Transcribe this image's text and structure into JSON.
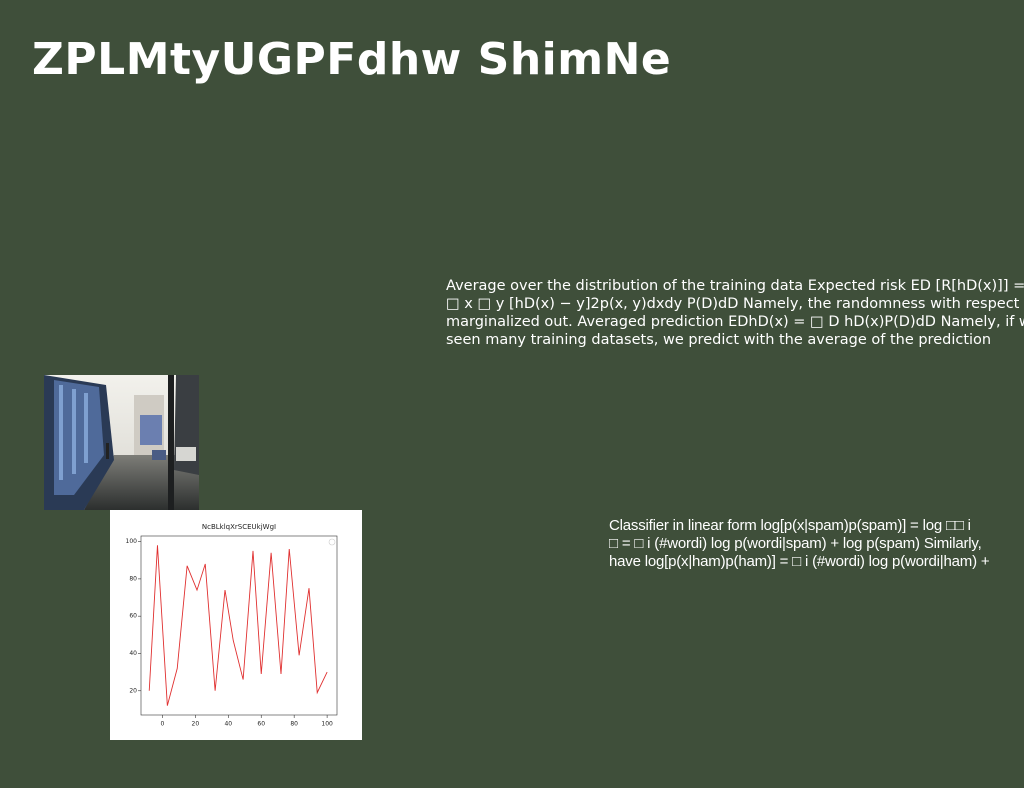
{
  "title": "ZPLMtyUGPFdhw ShimNe",
  "text_blocks": [
    {
      "lines": [
        "Average over the distribution of the training data Expected risk ED [R[hD(x)]] = □",
        "□ x □ y [hD(x) − y]2p(x, y)dxdy P(D)dD Namely, the randomness with respect to D",
        "marginalized out. Averaged prediction EDhD(x) = □ D hD(x)P(D)dD Namely, if we",
        "seen many training datasets, we predict with the average of the prediction"
      ]
    },
    {
      "lines": [
        "Classifier in linear form log[p(x|spam)p(spam)] = log □□ i",
        "□ = □ i (#wordi) log p(wordi|spam) + log p(spam) Similarly,",
        "have log[p(x|ham)p(ham)] = □ i (#wordi) log p(wordi|ham) +"
      ]
    }
  ],
  "chart_data": {
    "type": "line",
    "title": "NcBLklqXrSCEUkjWgI",
    "x": [
      -8,
      -3,
      3,
      9,
      15,
      21,
      26,
      32,
      38,
      43,
      49,
      55,
      60,
      66,
      72,
      77,
      83,
      89,
      94,
      100
    ],
    "series": [
      {
        "color": "#e03030",
        "values": [
          20,
          98,
          12,
          32,
          87,
          74,
          88,
          20,
          74,
          47,
          26,
          95,
          29,
          94,
          29,
          96,
          39,
          75,
          19,
          30
        ]
      }
    ],
    "xlim": [
      -13,
      106
    ],
    "xticks": [
      0,
      20,
      40,
      60,
      80,
      100
    ],
    "ylim": [
      7,
      103
    ],
    "yticks": [
      20,
      40,
      60,
      80,
      100
    ]
  }
}
